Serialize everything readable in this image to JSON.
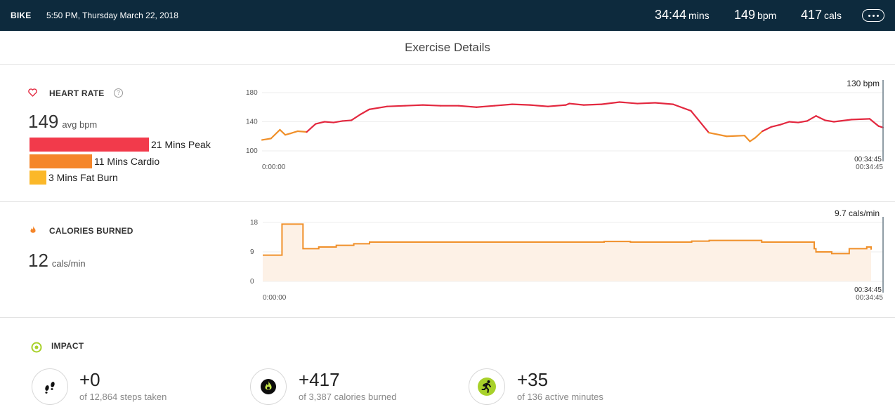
{
  "header": {
    "activity": "BIKE",
    "datetime": "5:50 PM, Thursday March 22, 2018",
    "duration_value": "34:44",
    "duration_unit": "mins",
    "hr_value": "149",
    "hr_unit": "bpm",
    "cal_value": "417",
    "cal_unit": "cals",
    "more_icon": "more-dots-icon"
  },
  "title": "Exercise Details",
  "heart_rate": {
    "icon": "heart-icon",
    "label": "HEART RATE",
    "help": "?",
    "avg_value": "149",
    "avg_unit": "avg bpm",
    "zones": [
      {
        "label": "21 Mins Peak",
        "minutes": 21,
        "color": "#f23a4b"
      },
      {
        "label": "11 Mins Cardio",
        "minutes": 11,
        "color": "#f5862a"
      },
      {
        "label": "3 Mins Fat Burn",
        "minutes": 3,
        "color": "#fbb829"
      }
    ]
  },
  "calories": {
    "icon": "flame-icon",
    "label": "CALORIES BURNED",
    "value": "12",
    "unit": "cals/min"
  },
  "impact": {
    "icon": "target-icon",
    "label": "IMPACT",
    "items": [
      {
        "icon": "footprints-icon",
        "value": "+0",
        "sub": "of 12,864 steps taken"
      },
      {
        "icon": "calories-flame-icon",
        "value": "+417",
        "sub": "of 3,387 calories burned"
      },
      {
        "icon": "runner-icon",
        "value": "+35",
        "sub": "of 136 active minutes"
      }
    ]
  },
  "chart_data": [
    {
      "type": "line",
      "name": "heart_rate",
      "y_ticks": [
        "180",
        "140",
        "100"
      ],
      "ylim": [
        100,
        180
      ],
      "x_start_label": "0:00:00",
      "x_end_label": "00:34:45",
      "x_end_label_top": "00:34:45",
      "current_label": "130 bpm",
      "colors": {
        "peak": "#e3283f",
        "cardio": "#f0902a"
      },
      "x_minutes": [
        0,
        0.5,
        1,
        1.3,
        1.6,
        2,
        2.5,
        3,
        3.5,
        4,
        4.5,
        5,
        5.5,
        6,
        7,
        8,
        9,
        10,
        11,
        12,
        13,
        14,
        15,
        16,
        17,
        17.2,
        18,
        19,
        20,
        21,
        22,
        23,
        24,
        25,
        26,
        27,
        27.3,
        27.6,
        28,
        28.5,
        29,
        29.5,
        30,
        30.5,
        31,
        31.5,
        32,
        33,
        34,
        34.5,
        34.75
      ],
      "bpm": [
        115,
        117,
        129,
        122,
        124,
        127,
        126,
        137,
        140,
        139,
        141,
        142,
        150,
        157,
        161,
        162,
        163,
        162,
        162,
        160,
        162,
        164,
        163,
        161,
        163,
        165,
        163,
        164,
        167,
        165,
        166,
        164,
        155,
        125,
        120,
        121,
        113,
        118,
        127,
        133,
        136,
        140,
        139,
        141,
        148,
        142,
        140,
        143,
        144,
        134,
        132
      ]
    },
    {
      "type": "area",
      "name": "calories_per_minute",
      "y_ticks": [
        "18",
        "9",
        "0"
      ],
      "ylim": [
        0,
        18
      ],
      "x_start_label": "0:00:00",
      "x_end_label": "00:34:45",
      "x_end_label_top": "00:34:45",
      "current_label": "9.7 cals/min",
      "line_color": "#f0902a",
      "fill_color": "#fdf1e6",
      "x_minutes": [
        0,
        1,
        1.1,
        2.2,
        2.3,
        3.2,
        4.2,
        5.2,
        6.1,
        16,
        19.5,
        21,
        24.5,
        25.5,
        28.5,
        31.5,
        31.6,
        32.5,
        33.5,
        34.5,
        34.75
      ],
      "cals": [
        8,
        8,
        17.5,
        17.5,
        10,
        10.5,
        11,
        11.5,
        12,
        12,
        12.2,
        12,
        12.3,
        12.5,
        12,
        10,
        9,
        8.5,
        10,
        10.5,
        9.7
      ]
    }
  ]
}
